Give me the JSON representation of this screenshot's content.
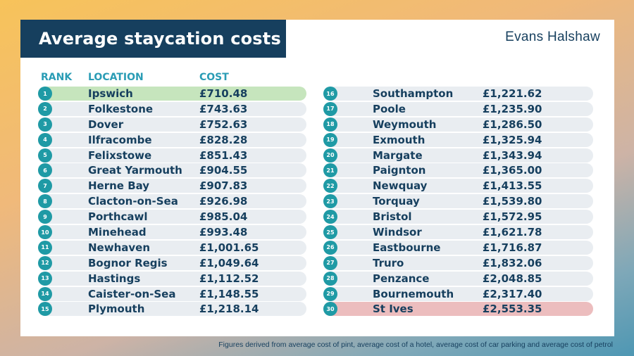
{
  "title": "Average staycation costs",
  "brand": "Evans Halshaw",
  "headers": {
    "rank": "RANK",
    "location": "LOCATION",
    "cost": "COST"
  },
  "rows": [
    {
      "rank": "1",
      "location": "Ipswich",
      "cost": "£710.48"
    },
    {
      "rank": "2",
      "location": "Folkestone",
      "cost": "£743.63"
    },
    {
      "rank": "3",
      "location": "Dover",
      "cost": "£752.63"
    },
    {
      "rank": "4",
      "location": "Ilfracombe",
      "cost": "£828.28"
    },
    {
      "rank": "5",
      "location": "Felixstowe",
      "cost": "£851.43"
    },
    {
      "rank": "6",
      "location": "Great Yarmouth",
      "cost": "£904.55"
    },
    {
      "rank": "7",
      "location": "Herne Bay",
      "cost": "£907.83"
    },
    {
      "rank": "8",
      "location": "Clacton-on-Sea",
      "cost": "£926.98"
    },
    {
      "rank": "9",
      "location": "Porthcawl",
      "cost": "£985.04"
    },
    {
      "rank": "10",
      "location": "Minehead",
      "cost": "£993.48"
    },
    {
      "rank": "11",
      "location": "Newhaven",
      "cost": "£1,001.65"
    },
    {
      "rank": "12",
      "location": "Bognor Regis",
      "cost": "£1,049.64"
    },
    {
      "rank": "13",
      "location": "Hastings",
      "cost": "£1,112.52"
    },
    {
      "rank": "14",
      "location": "Caister-on-Sea",
      "cost": "£1,148.55"
    },
    {
      "rank": "15",
      "location": "Plymouth",
      "cost": "£1,218.14"
    },
    {
      "rank": "16",
      "location": "Southampton",
      "cost": "£1,221.62"
    },
    {
      "rank": "17",
      "location": "Poole",
      "cost": "£1,235.90"
    },
    {
      "rank": "18",
      "location": "Weymouth",
      "cost": "£1,286.50"
    },
    {
      "rank": "19",
      "location": "Exmouth",
      "cost": "£1,325.94"
    },
    {
      "rank": "20",
      "location": "Margate",
      "cost": "£1,343.94"
    },
    {
      "rank": "21",
      "location": "Paignton",
      "cost": "£1,365.00"
    },
    {
      "rank": "22",
      "location": "Newquay",
      "cost": "£1,413.55"
    },
    {
      "rank": "23",
      "location": "Torquay",
      "cost": "£1,539.80"
    },
    {
      "rank": "24",
      "location": "Bristol",
      "cost": "£1,572.95"
    },
    {
      "rank": "25",
      "location": "Windsor",
      "cost": "£1,621.78"
    },
    {
      "rank": "26",
      "location": "Eastbourne",
      "cost": "£1,716.87"
    },
    {
      "rank": "27",
      "location": "Truro",
      "cost": "£1,832.06"
    },
    {
      "rank": "28",
      "location": "Penzance",
      "cost": "£2,048.85"
    },
    {
      "rank": "29",
      "location": "Bournemouth",
      "cost": "£2,317.40"
    },
    {
      "rank": "30",
      "location": "St Ives",
      "cost": "£2,553.35"
    }
  ],
  "highlight_colors": {
    "cheapest": "#c6e5bd",
    "most_expensive": "#ecbdbe",
    "badge": "#1f9aa5",
    "navy": "#163f5e"
  },
  "footnote": "Figures derived from average cost of pint, average cost of a hotel, average cost of car parking and average cost of petrol"
}
